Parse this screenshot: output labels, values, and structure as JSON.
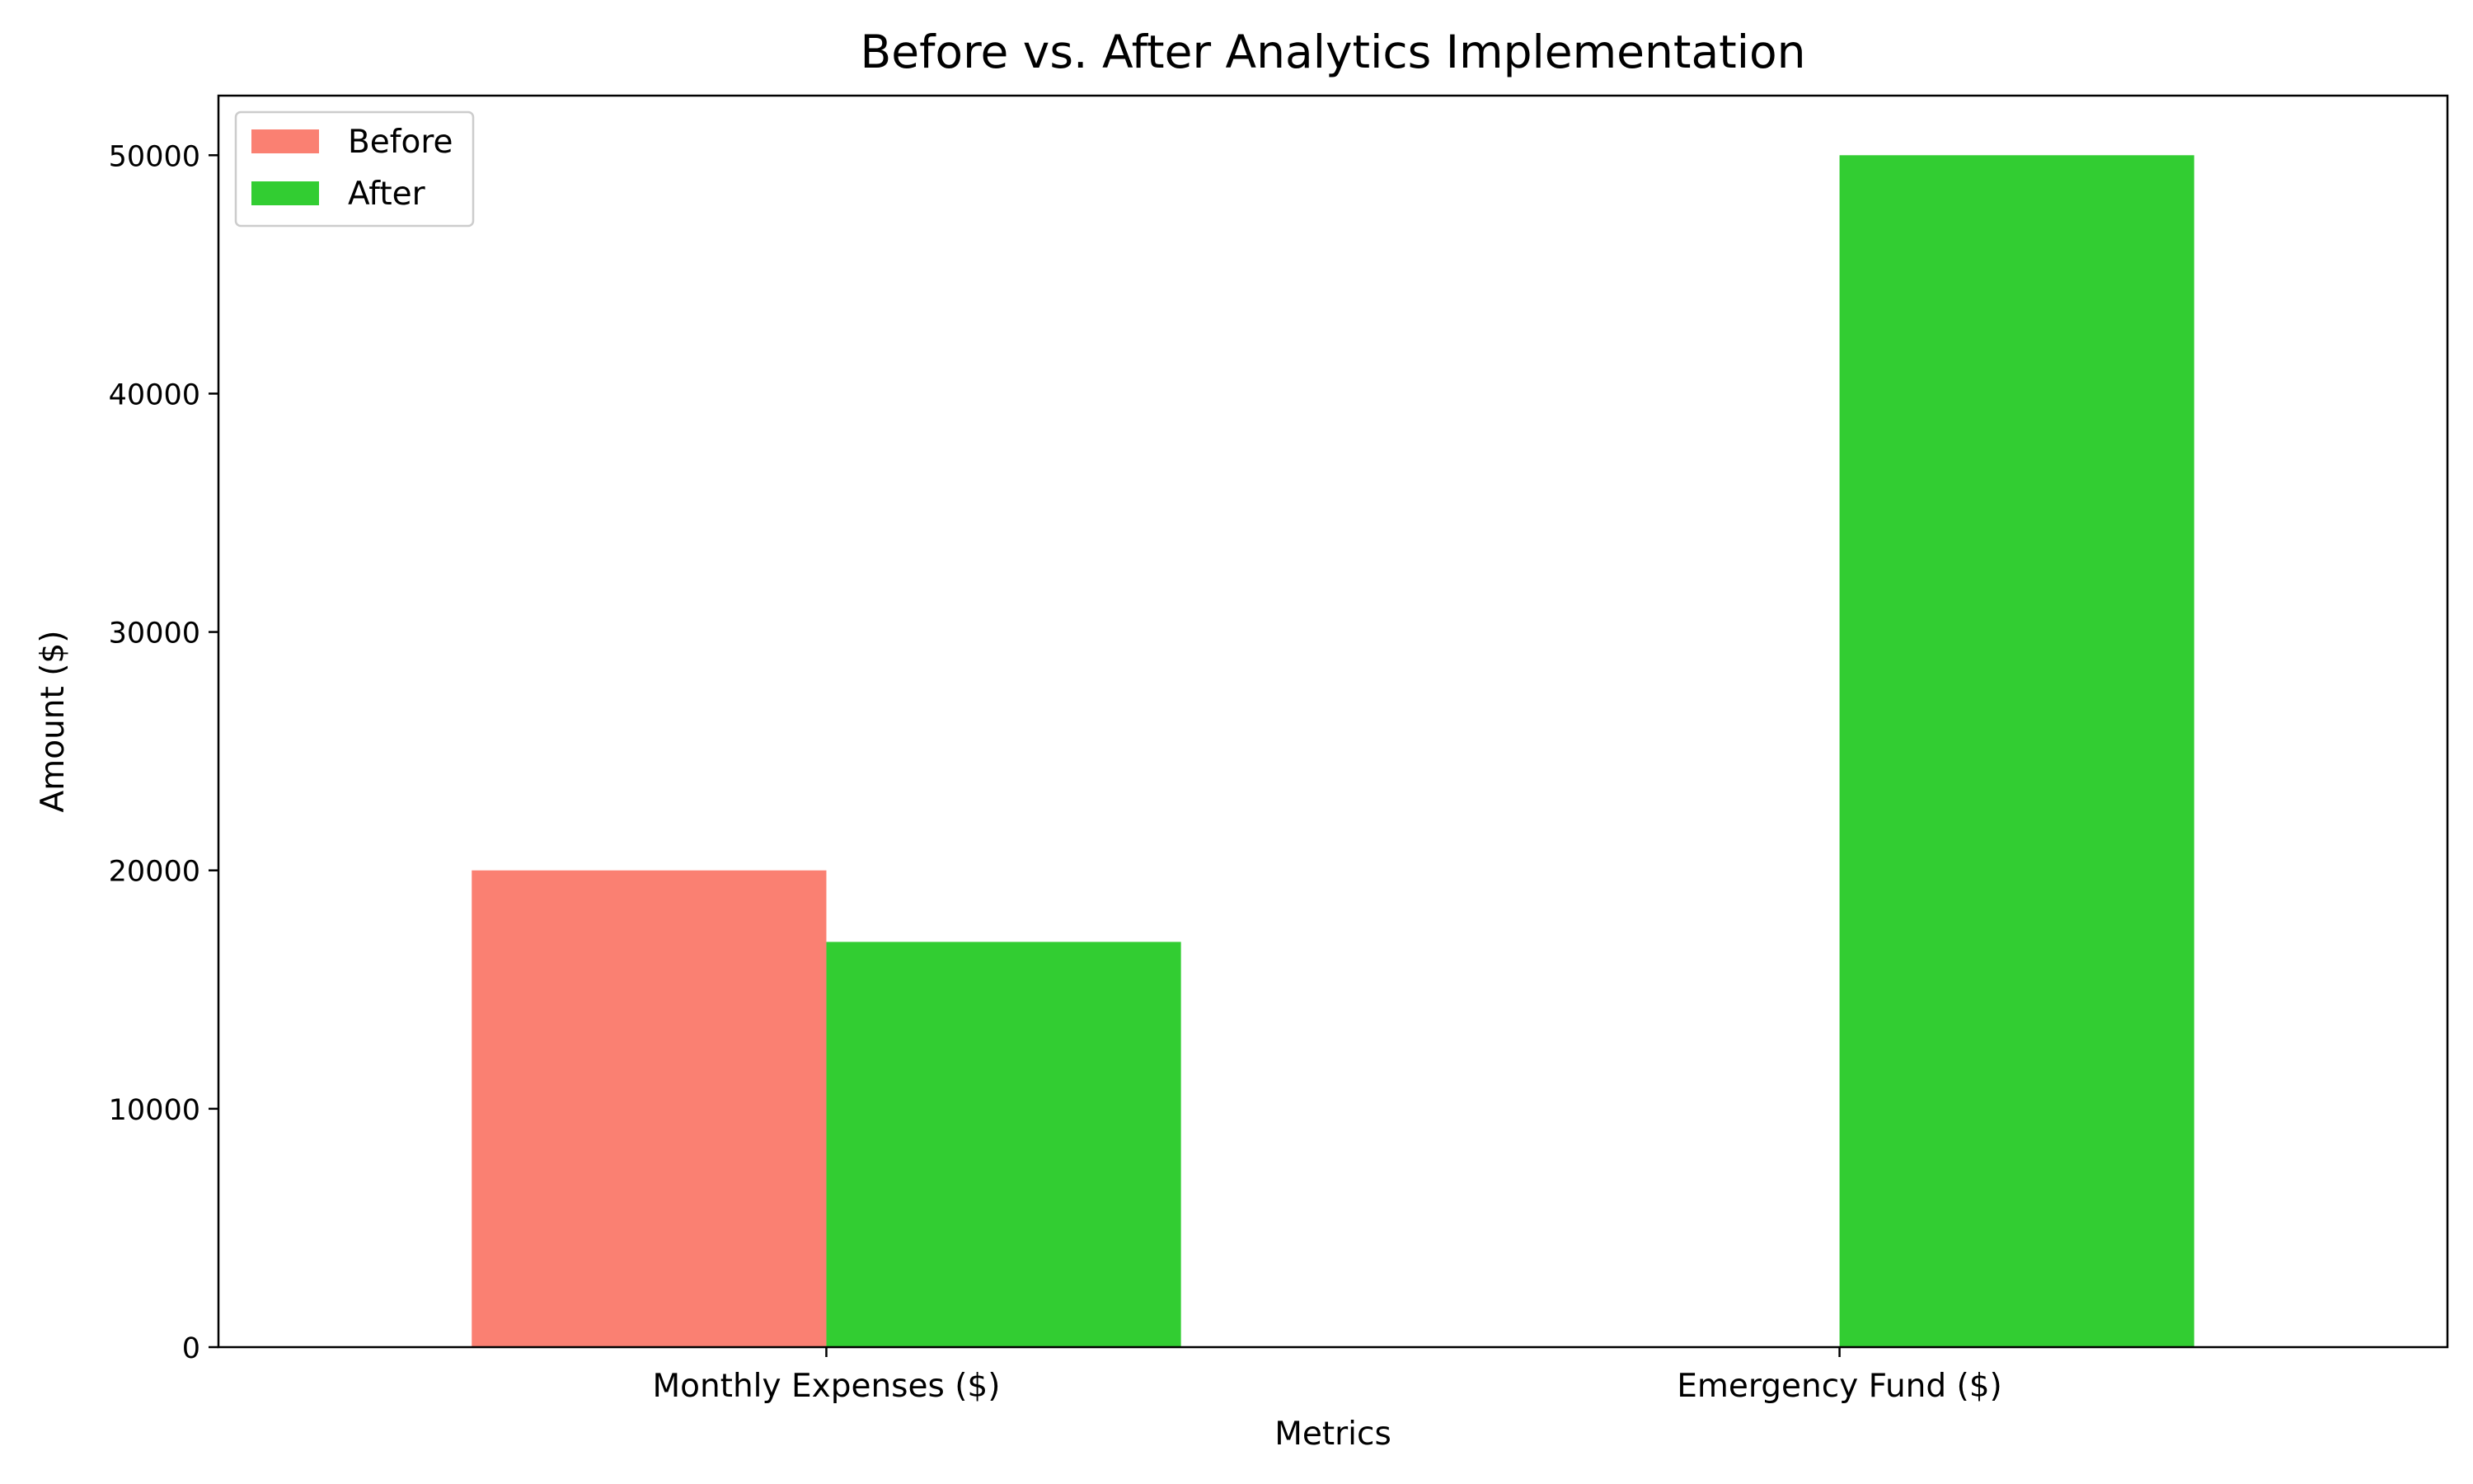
{
  "chart_data": {
    "type": "bar",
    "title": "Before vs. After Analytics Implementation",
    "xlabel": "Metrics",
    "ylabel": "Amount ($)",
    "categories": [
      "Monthly Expenses ($)",
      "Emergency Fund ($)"
    ],
    "series": [
      {
        "name": "Before",
        "values": [
          20000,
          0
        ],
        "color": "#fa8072"
      },
      {
        "name": "After",
        "values": [
          17000,
          50000
        ],
        "color": "#32cd32"
      }
    ],
    "ylim": [
      0,
      52500
    ],
    "yticks": [
      0,
      10000,
      20000,
      30000,
      40000,
      50000
    ],
    "grid": false,
    "legend_position": "top-left"
  }
}
